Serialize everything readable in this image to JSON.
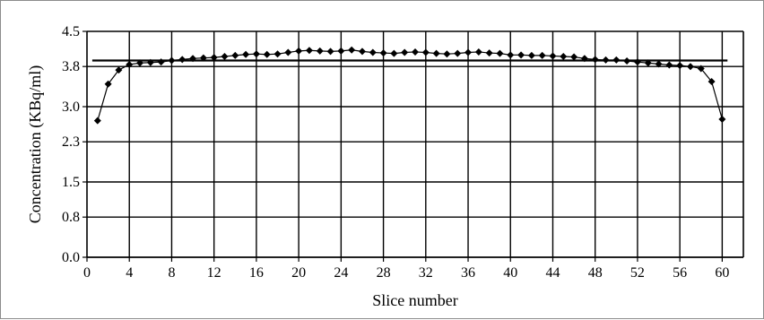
{
  "chart_data": {
    "type": "line",
    "title": "",
    "xlabel": "Slice number",
    "ylabel": "Concentration (KBq/ml)",
    "xlim": [
      0,
      62
    ],
    "ylim": [
      0,
      4.5
    ],
    "x_ticks": [
      0,
      4,
      8,
      12,
      16,
      20,
      24,
      28,
      32,
      36,
      40,
      44,
      48,
      52,
      56,
      60
    ],
    "y_ticks": [
      0.0,
      0.8,
      1.5,
      2.3,
      3.0,
      3.8,
      4.5
    ],
    "x_tick_labels": [
      "0",
      "4",
      "8",
      "12",
      "16",
      "20",
      "24",
      "28",
      "32",
      "36",
      "40",
      "44",
      "48",
      "52",
      "56",
      "60"
    ],
    "y_tick_labels": [
      "0.0",
      "0.8",
      "1.5",
      "2.3",
      "3.0",
      "3.8",
      "4.5"
    ],
    "grid": true,
    "legend": "none",
    "series": [
      {
        "marker": "diamond",
        "color": "#000000",
        "x": [
          1,
          2,
          3,
          4,
          5,
          6,
          7,
          8,
          9,
          10,
          11,
          12,
          13,
          14,
          15,
          16,
          17,
          18,
          19,
          20,
          21,
          22,
          23,
          24,
          25,
          26,
          27,
          28,
          29,
          30,
          31,
          32,
          33,
          34,
          35,
          36,
          37,
          38,
          39,
          40,
          41,
          42,
          43,
          44,
          45,
          46,
          47,
          48,
          49,
          50,
          51,
          52,
          53,
          54,
          55,
          56,
          57,
          58,
          59,
          60
        ],
        "y": [
          2.72,
          3.45,
          3.73,
          3.84,
          3.87,
          3.88,
          3.89,
          3.92,
          3.94,
          3.96,
          3.97,
          3.98,
          4.0,
          4.02,
          4.04,
          4.05,
          4.04,
          4.05,
          4.08,
          4.11,
          4.12,
          4.11,
          4.1,
          4.11,
          4.13,
          4.1,
          4.08,
          4.07,
          4.06,
          4.08,
          4.09,
          4.08,
          4.06,
          4.05,
          4.06,
          4.08,
          4.09,
          4.07,
          4.06,
          4.03,
          4.03,
          4.02,
          4.02,
          4.01,
          4.0,
          3.99,
          3.96,
          3.94,
          3.93,
          3.93,
          3.91,
          3.89,
          3.87,
          3.85,
          3.83,
          3.82,
          3.8,
          3.76,
          3.5,
          2.75
        ]
      },
      {
        "type": "reference-line",
        "color": "#000000",
        "x": [
          0.5,
          60.5
        ],
        "y": [
          3.92,
          3.92
        ]
      }
    ]
  }
}
